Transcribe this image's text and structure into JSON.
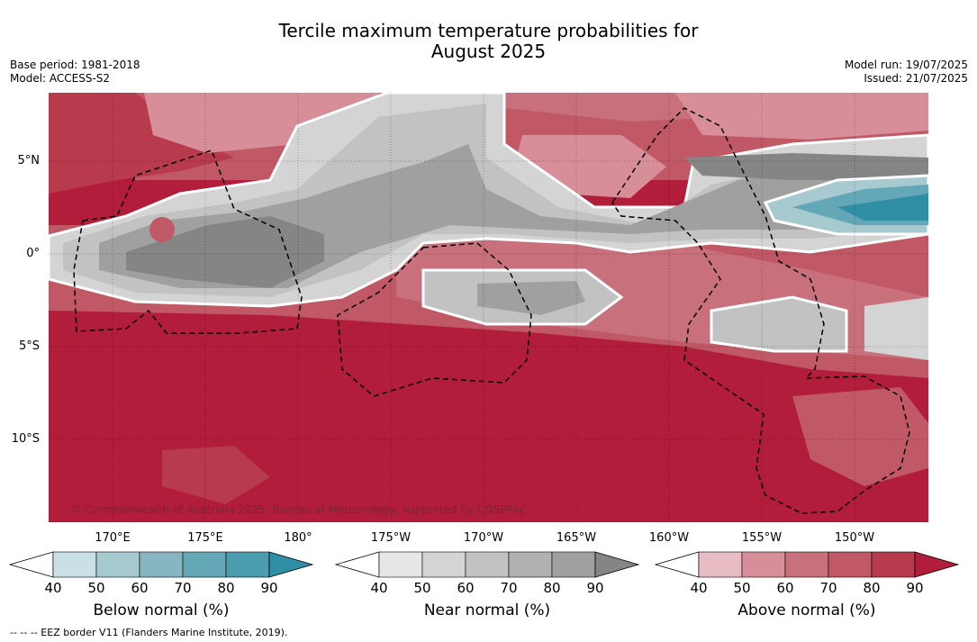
{
  "title_line1": "Tercile maximum temperature probabilities for",
  "title_line2": "August 2025",
  "base_period": "Base period: 1981-2018",
  "model": "Model: ACCESS-S2",
  "model_run": "Model run: 19/07/2025",
  "issued": "Issued: 21/07/2025",
  "lat_labels": [
    "5°N",
    "0°",
    "5°S",
    "10°S"
  ],
  "lon_labels": [
    "170°E",
    "175°E",
    "180°",
    "175°W",
    "170°W",
    "165°W",
    "160°W",
    "155°W",
    "150°W"
  ],
  "copyright": "© Commonwealth of Australia 2025, Bureau of Meteorology, supported by COSPPac",
  "colorbars": [
    {
      "title": "Below normal (%)",
      "ticks": [
        "40",
        "50",
        "60",
        "70",
        "80",
        "90"
      ],
      "colors": [
        "#ffffff",
        "#c9e0e6",
        "#a7c9d0",
        "#88b6c0",
        "#64a7b6",
        "#4a9cae",
        "#2e8fa5"
      ]
    },
    {
      "title": "Near normal (%)",
      "ticks": [
        "40",
        "50",
        "60",
        "70",
        "80",
        "90"
      ],
      "colors": [
        "#ffffff",
        "#e6e6e6",
        "#d4d4d4",
        "#c2c2c2",
        "#b1b1b1",
        "#a0a0a0",
        "#858585"
      ]
    },
    {
      "title": "Above normal (%)",
      "ticks": [
        "40",
        "50",
        "60",
        "70",
        "80",
        "90"
      ],
      "colors": [
        "#ffffff",
        "#e7bcc3",
        "#d88e98",
        "#c8707c",
        "#c05865",
        "#b73a4d",
        "#b11d3a"
      ]
    }
  ],
  "eez_note": "--  --  -- EEZ border V11 (Flanders Marine Institute, 2019)."
}
